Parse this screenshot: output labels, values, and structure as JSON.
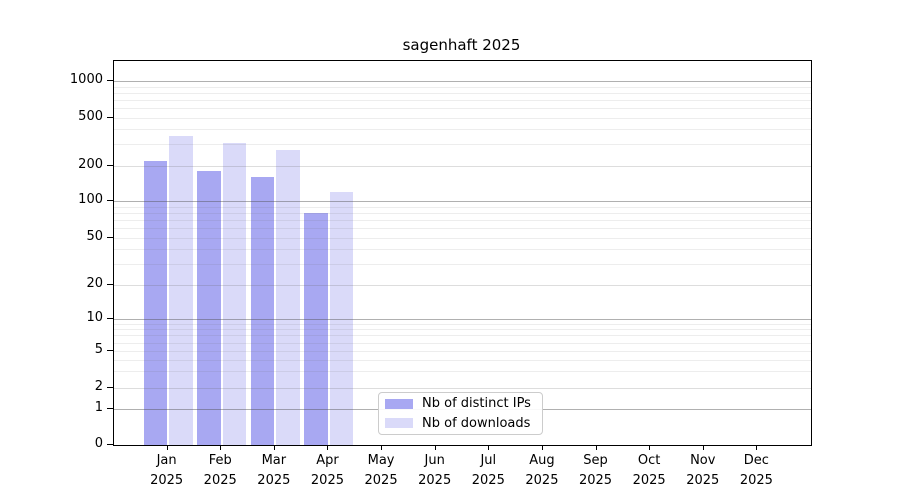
{
  "chart_data": {
    "type": "bar",
    "title": "sagenhaft 2025",
    "categories": [
      "Jan",
      "Feb",
      "Mar",
      "Apr",
      "May",
      "Jun",
      "Jul",
      "Aug",
      "Sep",
      "Oct",
      "Nov",
      "Dec"
    ],
    "category_year": "2025",
    "series": [
      {
        "name": "Nb of distinct IPs",
        "color": "#a8a8f2",
        "values": [
          220,
          180,
          160,
          80,
          0,
          0,
          0,
          0,
          0,
          0,
          0,
          0
        ]
      },
      {
        "name": "Nb of downloads",
        "color": "#dadaf9",
        "values": [
          350,
          310,
          270,
          120,
          0,
          0,
          0,
          0,
          0,
          0,
          0,
          0
        ]
      }
    ],
    "y_ticks": [
      0,
      1,
      2,
      5,
      10,
      20,
      50,
      100,
      200,
      500,
      1000
    ],
    "y_minor_gridlines": [
      2,
      3,
      4,
      6,
      7,
      8,
      9,
      20,
      30,
      40,
      60,
      70,
      80,
      90,
      200,
      300,
      400,
      600,
      700,
      800,
      900
    ],
    "y_major_gridlines": [
      1,
      10,
      100,
      1000
    ],
    "y_labeled_minor_gridlines": [
      2,
      5,
      20,
      50,
      200,
      500
    ],
    "y_scale": "symlog",
    "ylim": [
      0,
      1259
    ],
    "grid": true,
    "legend_position": "lower-center",
    "colors": {
      "frame": "#000000",
      "background": "#ffffff",
      "legend_border": "#cccccc",
      "text": "#000000"
    }
  }
}
